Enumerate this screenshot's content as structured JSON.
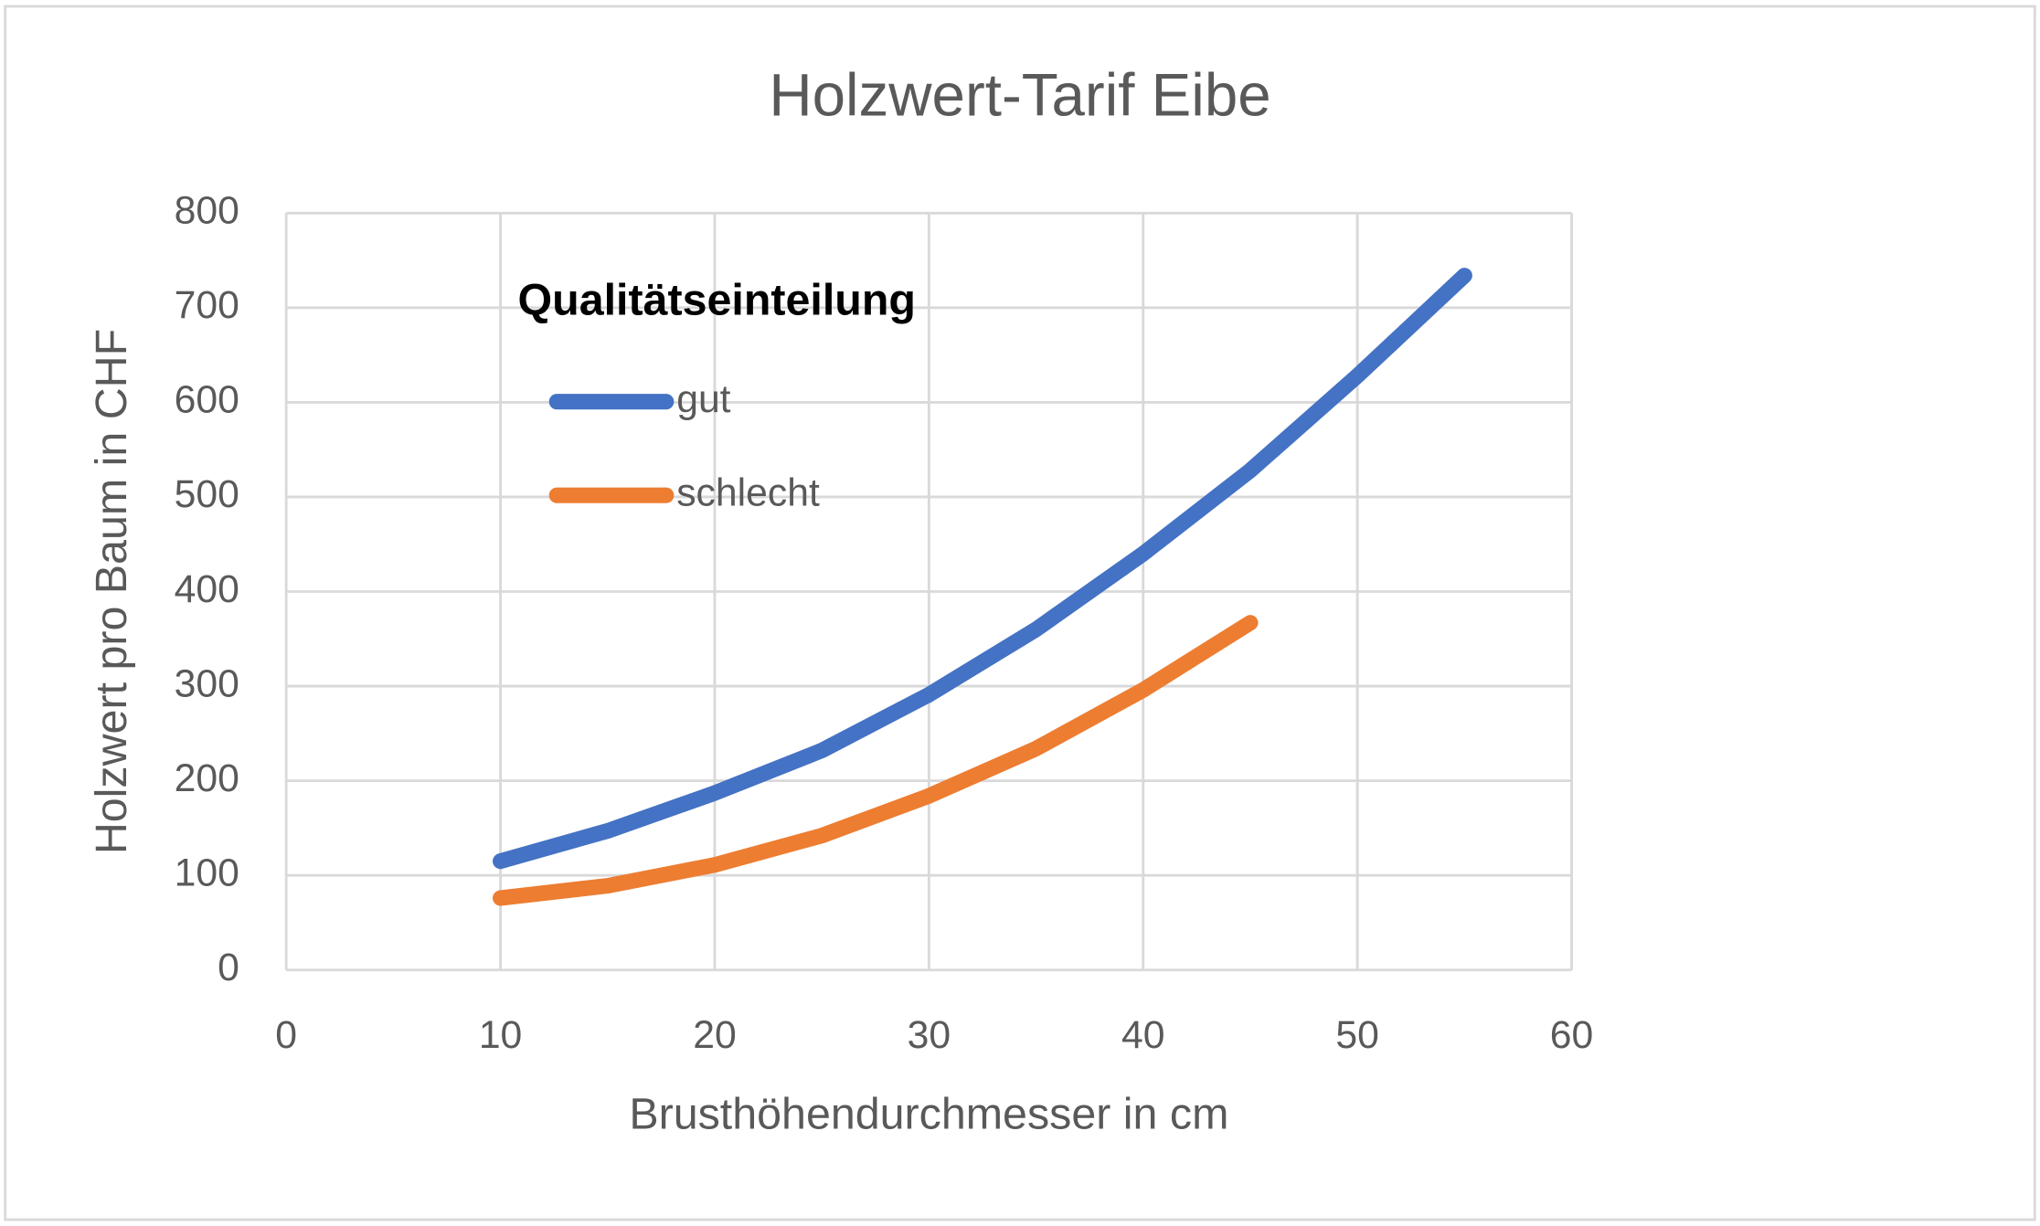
{
  "chart_data": {
    "type": "line",
    "title": "Holzwert-Tarif Eibe",
    "x_label": "Brusthöhendurchmesser in cm",
    "y_label": "Holzwert pro Baum in CHF",
    "legend_title": "Qualitätseinteilung",
    "legend": "upper left",
    "grid": true,
    "x": [
      10,
      15,
      20,
      25,
      30,
      35,
      40,
      45,
      50,
      55
    ],
    "series": [
      {
        "name": "gut",
        "color": "#4472c4",
        "values": [
          115,
          147,
          187,
          232,
          291,
          360,
          440,
          528,
          628,
          734
        ]
      },
      {
        "name": "schlecht",
        "color": "#ed7d31",
        "values": [
          76,
          89,
          111,
          142,
          184,
          234,
          296,
          367,
          null,
          null
        ]
      }
    ],
    "xlim": [
      0,
      60
    ],
    "xticks": [
      0,
      10,
      20,
      30,
      40,
      50,
      60
    ],
    "ylim": [
      0,
      800
    ],
    "yticks": [
      0,
      100,
      200,
      300,
      400,
      500,
      600,
      700,
      800
    ]
  }
}
